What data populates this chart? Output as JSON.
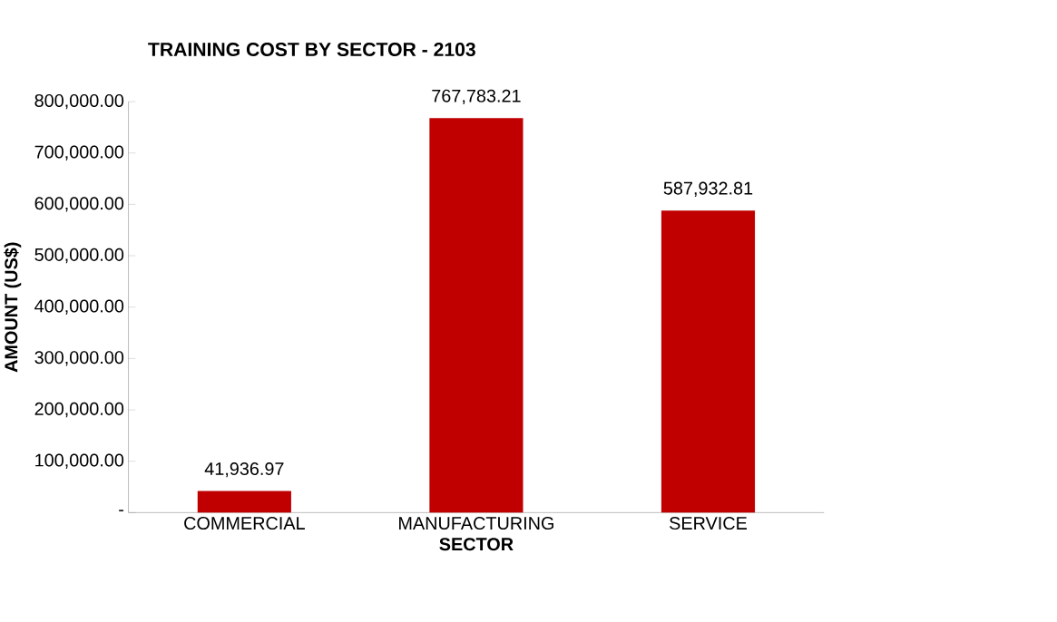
{
  "chart_data": {
    "type": "bar",
    "title": "TRAINING COST BY SECTOR - 2103",
    "xlabel": "SECTOR",
    "ylabel": "AMOUNT (US$)",
    "categories": [
      "COMMERCIAL",
      "MANUFACTURING",
      "SERVICE"
    ],
    "values": [
      41936.97,
      767783.21,
      587932.81
    ],
    "value_labels": [
      "41,936.97",
      "767,783.21",
      "587,932.81"
    ],
    "color": "#c00000",
    "ylim": [
      0,
      800000
    ],
    "yticks": [
      {
        "value": 0,
        "label": "-"
      },
      {
        "value": 100000,
        "label": "100,000.00"
      },
      {
        "value": 200000,
        "label": "200,000.00"
      },
      {
        "value": 300000,
        "label": "300,000.00"
      },
      {
        "value": 400000,
        "label": "400,000.00"
      },
      {
        "value": 500000,
        "label": "500,000.00"
      },
      {
        "value": 600000,
        "label": "600,000.00"
      },
      {
        "value": 700000,
        "label": "700,000.00"
      },
      {
        "value": 800000,
        "label": "800,000.00"
      }
    ]
  }
}
